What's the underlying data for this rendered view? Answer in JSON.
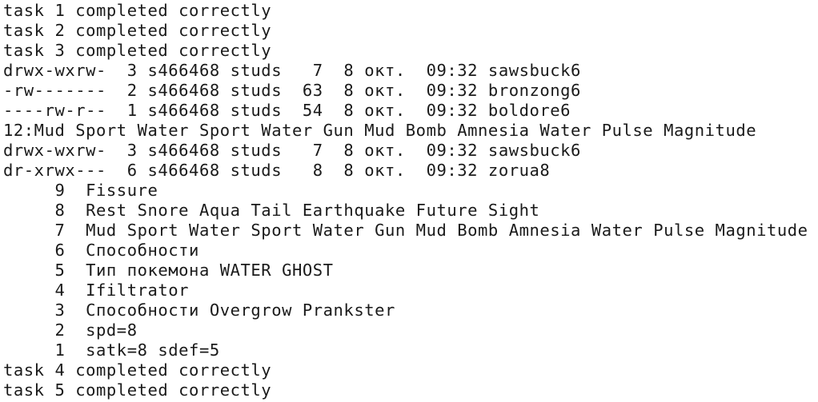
{
  "terminal": {
    "lines": [
      "task 1 completed correctly",
      "task 2 completed correctly",
      "task 3 completed correctly",
      "drwx-wxrw-  3 s466468 studs   7  8 окт.  09:32 sawsbuck6",
      "-rw-------  2 s466468 studs  63  8 окт.  09:32 bronzong6",
      "----rw-r--  1 s466468 studs  54  8 окт.  09:32 boldore6",
      "12:Mud Sport Water Sport Water Gun Mud Bomb Amnesia Water Pulse Magnitude",
      "drwx-wxrw-  3 s466468 studs   7  8 окт.  09:32 sawsbuck6",
      "dr-xrwx---  6 s466468 studs   8  8 окт.  09:32 zorua8",
      "     9  Fissure",
      "     8  Rest Snore Aqua Tail Earthquake Future Sight",
      "     7  Mud Sport Water Sport Water Gun Mud Bomb Amnesia Water Pulse Magnitude",
      "     6  Способности",
      "     5  Тип покемона WATER GHOST",
      "     4  Ifiltrator",
      "     3  Способности Overgrow Prankster",
      "     2  spd=8",
      "     1  satk=8 sdef=5",
      "task 4 completed correctly",
      "task 5 completed correctly"
    ]
  }
}
